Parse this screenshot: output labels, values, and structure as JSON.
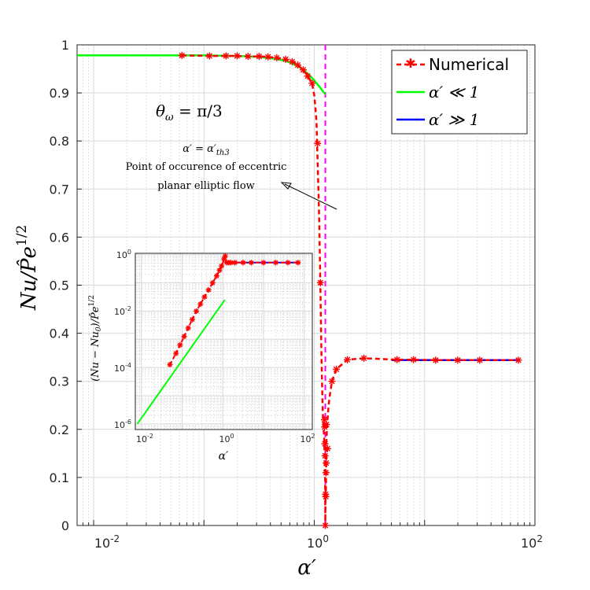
{
  "chart_data": [
    {
      "type": "line",
      "name": "main",
      "xscale": "log",
      "xlim_log10": [
        -2.15,
        2.0
      ],
      "ylim": [
        0,
        1
      ],
      "xlabel": "α′",
      "ylabel": "Nu/P̂e^{1/2}",
      "xtick_labels": [
        "10^-2",
        "10^0",
        "10^2"
      ],
      "ytick_labels": [
        "0",
        "0.1",
        "0.2",
        "0.3",
        "0.4",
        "0.5",
        "0.6",
        "0.7",
        "0.8",
        "0.9",
        "1"
      ],
      "grid": true,
      "legend_position": "top-right",
      "legend": [
        "Numerical",
        "α′ ≪ 1",
        "α′ ≫ 1"
      ],
      "threshold_log10_x": 0.1,
      "annotation_theta": "θω = π/3",
      "annotation_alpha": "α′ = α′th3",
      "annotation_lines": [
        "Point of occurence of eccentric",
        "planar elliptic flow"
      ],
      "colors": {
        "numerical": "#ff0000",
        "small": "#00ff00",
        "large": "#0000ff",
        "threshold": "#ff00ff"
      },
      "series": [
        {
          "name": "Numerical",
          "style": "dashed-markers",
          "log10_x": [
            -1.2,
            -0.95,
            -0.8,
            -0.7,
            -0.6,
            -0.5,
            -0.42,
            -0.34,
            -0.26,
            -0.2,
            -0.15,
            -0.1,
            -0.06,
            -0.02,
            0.0,
            0.01,
            0.02,
            0.025,
            0.03,
            0.035,
            0.04,
            0.045,
            0.05,
            0.055,
            0.06,
            0.065,
            0.07,
            0.075,
            0.08,
            0.085,
            0.09,
            0.092,
            0.094,
            0.096,
            0.098,
            0.1,
            0.102,
            0.104,
            0.106,
            0.108,
            0.11,
            0.115,
            0.12,
            0.125,
            0.13,
            0.14,
            0.16,
            0.2,
            0.3,
            0.45,
            0.65,
            0.75,
            0.9,
            1.1,
            1.3,
            1.5,
            1.7,
            1.85
          ],
          "y": [
            0.978,
            0.977,
            0.977,
            0.977,
            0.976,
            0.976,
            0.975,
            0.973,
            0.97,
            0.965,
            0.958,
            0.948,
            0.935,
            0.92,
            0.895,
            0.87,
            0.84,
            0.8,
            0.76,
            0.72,
            0.68,
            0.63,
            0.57,
            0.505,
            0.43,
            0.36,
            0.3,
            0.255,
            0.22,
            0.2,
            0.18,
            0.16,
            0.14,
            0.12,
            0.1,
            0.0,
            0.08,
            0.06,
            0.09,
            0.13,
            0.17,
            0.2,
            0.22,
            0.235,
            0.25,
            0.27,
            0.3,
            0.325,
            0.345,
            0.348,
            0.346,
            0.345,
            0.345,
            0.344,
            0.344,
            0.344,
            0.344,
            0.344
          ],
          "markers_log10_x": [
            -1.2,
            -0.95,
            -0.8,
            -0.7,
            -0.6,
            -0.5,
            -0.42,
            -0.34,
            -0.26,
            -0.2,
            -0.15,
            -0.1,
            -0.06,
            -0.02,
            0.03,
            0.055,
            0.092,
            0.094,
            0.096,
            0.098,
            0.1,
            0.102,
            0.104,
            0.106,
            0.108,
            0.11,
            0.12,
            0.16,
            0.2,
            0.3,
            0.45,
            0.75,
            0.9,
            1.1,
            1.3,
            1.5,
            1.85
          ],
          "markers_y": [
            0.978,
            0.977,
            0.977,
            0.977,
            0.976,
            0.976,
            0.975,
            0.973,
            0.97,
            0.965,
            0.958,
            0.948,
            0.935,
            0.92,
            0.795,
            0.505,
            0.22,
            0.205,
            0.17,
            0.145,
            0.0,
            0.065,
            0.06,
            0.11,
            0.13,
            0.21,
            0.16,
            0.3,
            0.325,
            0.345,
            0.348,
            0.345,
            0.345,
            0.344,
            0.344,
            0.344,
            0.344
          ]
        },
        {
          "name": "α′ ≪ 1",
          "log10_x": [
            -2.15,
            -1.5,
            -1.0,
            -0.7,
            -0.5,
            -0.35,
            -0.25,
            -0.15,
            -0.1,
            -0.05,
            0.0,
            0.05,
            0.1
          ],
          "y": [
            0.978,
            0.978,
            0.978,
            0.977,
            0.975,
            0.971,
            0.966,
            0.956,
            0.948,
            0.938,
            0.926,
            0.912,
            0.897
          ]
        },
        {
          "name": "α′ ≫ 1",
          "log10_x": [
            0.7,
            1.85
          ],
          "y": [
            0.344,
            0.344
          ]
        }
      ]
    },
    {
      "type": "line",
      "name": "inset",
      "xscale": "log",
      "yscale": "log",
      "xlim_log10": [
        -2.15,
        2.2
      ],
      "ylim_log10": [
        -6.2,
        0.05
      ],
      "xlabel": "α′",
      "ylabel": "(Nu − Nu0)/P̂e^{1/2}",
      "xtick_labels": [
        "10^-2",
        "10^0",
        "10^2"
      ],
      "ytick_labels": [
        "10^-6",
        "10^-4",
        "10^-2",
        "10^0"
      ],
      "series": [
        {
          "name": "Numerical",
          "log10_x": [
            -1.3,
            -1.15,
            -1.05,
            -0.95,
            -0.85,
            -0.75,
            -0.65,
            -0.55,
            -0.45,
            -0.35,
            -0.25,
            -0.15,
            -0.08,
            -0.03,
            0.0,
            0.03,
            0.06,
            0.1,
            0.15,
            0.2,
            0.3,
            0.5,
            0.7,
            1.0,
            1.3,
            1.6,
            1.85
          ],
          "log10_y": [
            -3.9,
            -3.5,
            -3.2,
            -2.9,
            -2.6,
            -2.3,
            -2.0,
            -1.75,
            -1.5,
            -1.25,
            -1.0,
            -0.75,
            -0.55,
            -0.4,
            -0.3,
            -0.15,
            -0.05,
            -0.28,
            -0.28,
            -0.28,
            -0.28,
            -0.28,
            -0.28,
            -0.28,
            -0.28,
            -0.28,
            -0.28
          ],
          "markers_log10_x": [
            -1.3,
            -1.15,
            -1.05,
            -0.95,
            -0.85,
            -0.75,
            -0.65,
            -0.55,
            -0.45,
            -0.35,
            -0.25,
            -0.15,
            -0.08,
            -0.03,
            0.03,
            0.06,
            0.1,
            0.15,
            0.2,
            0.3,
            0.5,
            0.7,
            1.0,
            1.3,
            1.6,
            1.85
          ],
          "markers_log10_y": [
            -3.9,
            -3.5,
            -3.2,
            -2.9,
            -2.6,
            -2.3,
            -2.0,
            -1.75,
            -1.5,
            -1.25,
            -1.0,
            -0.75,
            -0.55,
            -0.4,
            -0.15,
            -0.05,
            -0.28,
            -0.28,
            -0.28,
            -0.28,
            -0.28,
            -0.28,
            -0.28,
            -0.28,
            -0.28,
            -0.28
          ]
        },
        {
          "name": "α′ ≪ 1",
          "log10_x": [
            -2.1,
            0.05
          ],
          "log10_y": [
            -6.0,
            -1.6
          ]
        },
        {
          "name": "α′ ≫ 1",
          "log10_x": [
            0.05,
            1.85
          ],
          "log10_y": [
            -0.28,
            -0.28
          ]
        }
      ]
    }
  ]
}
